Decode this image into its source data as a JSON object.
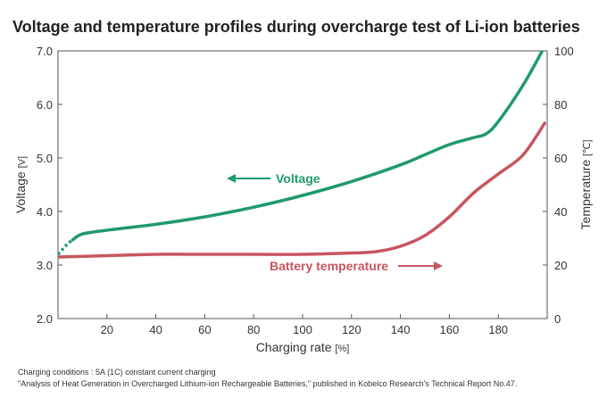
{
  "chart_data": {
    "type": "line",
    "title": "Voltage and temperature profiles during overcharge test of Li-ion batteries",
    "xlabel": "Charging rate",
    "xlabel_unit": "[%]",
    "ylabel_left": "Voltage",
    "ylabel_left_unit": "[V]",
    "ylabel_right": "Temperature",
    "ylabel_right_unit": "[℃]",
    "xlim": [
      0,
      200
    ],
    "ylim_left": [
      2.0,
      7.0
    ],
    "ylim_right": [
      0,
      100
    ],
    "x_ticks": [
      "20",
      "40",
      "60",
      "80",
      "100",
      "120",
      "140",
      "160",
      "180"
    ],
    "y_left_ticks": [
      "2.0",
      "3.0",
      "4.0",
      "5.0",
      "6.0",
      "7.0"
    ],
    "y_right_ticks": [
      "0",
      "20",
      "40",
      "60",
      "80",
      "100"
    ],
    "grid": false,
    "series": [
      {
        "name": "Voltage",
        "axis": "left",
        "color": "#1f9a6a",
        "dashed_segment": {
          "x": [
            0,
            2,
            4,
            6
          ],
          "y": [
            3.2,
            3.3,
            3.4,
            3.47
          ]
        },
        "x": [
          6,
          10,
          20,
          40,
          60,
          80,
          100,
          120,
          140,
          150,
          160,
          170,
          175,
          180,
          190,
          198
        ],
        "y": [
          3.47,
          3.58,
          3.65,
          3.76,
          3.9,
          4.08,
          4.3,
          4.56,
          4.87,
          5.06,
          5.25,
          5.38,
          5.45,
          5.68,
          6.35,
          7.0
        ]
      },
      {
        "name": "Battery temperature",
        "axis": "right",
        "color": "#c75660",
        "x": [
          0,
          20,
          40,
          60,
          80,
          100,
          120,
          130,
          140,
          150,
          160,
          170,
          180,
          190,
          199
        ],
        "y": [
          23,
          23.5,
          24,
          24,
          24,
          24,
          24.5,
          25,
          27,
          31,
          38,
          47,
          54,
          61,
          73
        ]
      }
    ],
    "annotations": [
      {
        "text": "Voltage",
        "arrow": "left",
        "color": "#1f9a6a"
      },
      {
        "text": "Battery temperature",
        "arrow": "right",
        "color": "#c75660"
      }
    ]
  },
  "footnotes": {
    "line1": "Charging conditions : 5A (1C) constant current charging",
    "line2": "\"Analysis of Heat Generation in Overcharged Lithium-ion Rechargeable Batteries,\" published in Kobelco Research's Technical Report No.47."
  }
}
